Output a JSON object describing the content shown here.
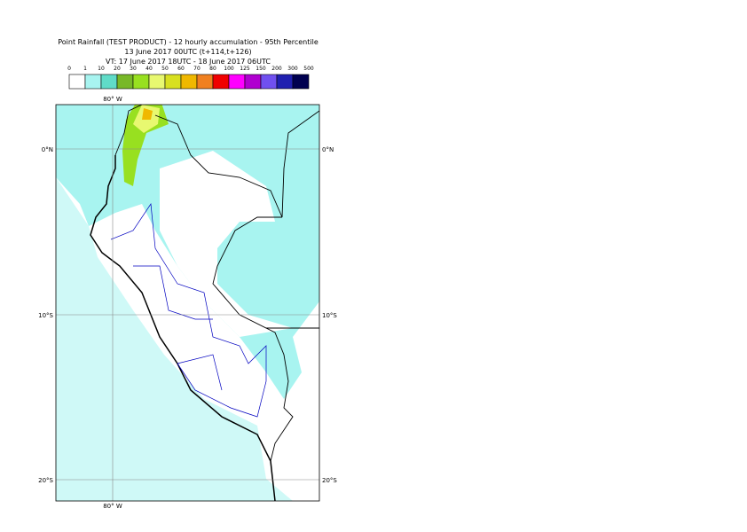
{
  "header": {
    "lines": [
      "Point Rainfall (TEST PRODUCT) - 12 hourly accumulation - 95th Percentile",
      "13 June 2017 00UTC (t+114,t+126)",
      "VT: 17 June 2017 18UTC - 18 June 2017 06UTC"
    ]
  },
  "legend": {
    "labels": [
      0,
      1,
      10,
      20,
      30,
      40,
      50,
      60,
      70,
      80,
      100,
      125,
      150,
      200,
      300,
      500
    ],
    "colors": [
      "#ffffff",
      "#a8f4f0",
      "#60dcc8",
      "#78b828",
      "#98e020",
      "#e8f870",
      "#d8e020",
      "#f0b800",
      "#f08020",
      "#f00000",
      "#ff00ff",
      "#b000d0",
      "#7050f0",
      "#2020b0",
      "#000050"
    ]
  },
  "map": {
    "lon_label": "80° W",
    "lat_labels": [
      "0°N",
      "10°S",
      "20°S"
    ]
  }
}
